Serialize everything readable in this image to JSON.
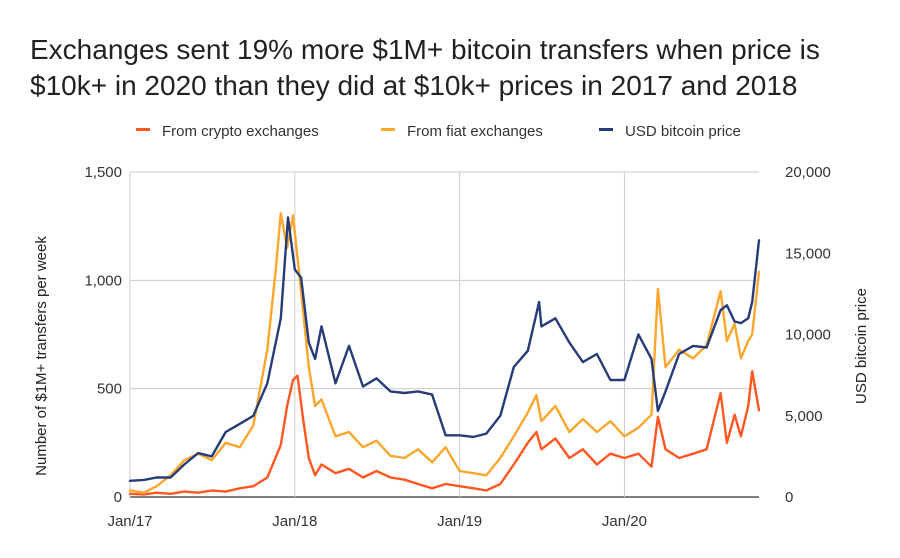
{
  "title_lines": [
    "Exchanges sent 19% more $1M+ bitcoin transfers when price is",
    "$10k+ in 2020 than they did at $10k+ prices in 2017 and 2018"
  ],
  "colors": {
    "crypto": "#FF5722",
    "fiat": "#FBA62D",
    "price": "#253C78",
    "grid": "#CCCCCC",
    "axis": "#333333"
  },
  "chart_data": {
    "type": "line",
    "title": "Exchanges sent 19% more $1M+ bitcoin transfers when price is $10k+ in 2020 than they did at $10k+ prices in 2017 and 2018",
    "ylabel": "Number of $1M+ transfers per week",
    "ylabel_right": "USD bitcoin price",
    "ylim": [
      0,
      1500
    ],
    "ylim_right": [
      0,
      20000
    ],
    "y_ticks": [
      "0",
      "500",
      "1,000",
      "1,500"
    ],
    "y_ticks_right": [
      "0",
      "5,000",
      "10,000",
      "15,000",
      "20,000"
    ],
    "x_ticks": [
      "Jan/17",
      "Jan/18",
      "Jan/19",
      "Jan/20"
    ],
    "x_range": [
      "2017-01-01",
      "2020-10-25"
    ],
    "grid": true,
    "legend_position": "top",
    "series": [
      {
        "name": "From crypto exchanges",
        "axis": "left",
        "color_key": "crypto",
        "points": [
          [
            "2017-01-01",
            15
          ],
          [
            "2017-02-01",
            12
          ],
          [
            "2017-03-01",
            20
          ],
          [
            "2017-04-01",
            15
          ],
          [
            "2017-05-01",
            25
          ],
          [
            "2017-06-01",
            20
          ],
          [
            "2017-07-01",
            30
          ],
          [
            "2017-08-01",
            25
          ],
          [
            "2017-09-01",
            40
          ],
          [
            "2017-10-01",
            50
          ],
          [
            "2017-11-01",
            90
          ],
          [
            "2017-12-01",
            240
          ],
          [
            "2017-12-15",
            420
          ],
          [
            "2017-12-28",
            540
          ],
          [
            "2018-01-07",
            560
          ],
          [
            "2018-01-20",
            350
          ],
          [
            "2018-02-01",
            180
          ],
          [
            "2018-02-15",
            100
          ],
          [
            "2018-03-01",
            150
          ],
          [
            "2018-04-01",
            110
          ],
          [
            "2018-05-01",
            130
          ],
          [
            "2018-06-01",
            90
          ],
          [
            "2018-07-01",
            120
          ],
          [
            "2018-08-01",
            90
          ],
          [
            "2018-09-01",
            80
          ],
          [
            "2018-10-01",
            60
          ],
          [
            "2018-11-01",
            40
          ],
          [
            "2018-12-01",
            60
          ],
          [
            "2019-01-01",
            50
          ],
          [
            "2019-02-01",
            40
          ],
          [
            "2019-03-01",
            30
          ],
          [
            "2019-04-01",
            60
          ],
          [
            "2019-05-01",
            150
          ],
          [
            "2019-06-01",
            250
          ],
          [
            "2019-06-20",
            300
          ],
          [
            "2019-07-01",
            220
          ],
          [
            "2019-08-01",
            270
          ],
          [
            "2019-09-01",
            180
          ],
          [
            "2019-10-01",
            220
          ],
          [
            "2019-11-01",
            150
          ],
          [
            "2019-12-01",
            200
          ],
          [
            "2020-01-01",
            180
          ],
          [
            "2020-02-01",
            200
          ],
          [
            "2020-03-01",
            140
          ],
          [
            "2020-03-15",
            370
          ],
          [
            "2020-04-01",
            220
          ],
          [
            "2020-05-01",
            180
          ],
          [
            "2020-06-01",
            200
          ],
          [
            "2020-07-01",
            220
          ],
          [
            "2020-08-01",
            480
          ],
          [
            "2020-08-15",
            250
          ],
          [
            "2020-09-01",
            380
          ],
          [
            "2020-09-15",
            280
          ],
          [
            "2020-10-01",
            420
          ],
          [
            "2020-10-10",
            580
          ],
          [
            "2020-10-25",
            400
          ]
        ]
      },
      {
        "name": "From fiat exchanges",
        "axis": "left",
        "color_key": "fiat",
        "points": [
          [
            "2017-01-01",
            30
          ],
          [
            "2017-02-01",
            20
          ],
          [
            "2017-03-01",
            50
          ],
          [
            "2017-04-01",
            100
          ],
          [
            "2017-05-01",
            170
          ],
          [
            "2017-06-01",
            200
          ],
          [
            "2017-07-01",
            170
          ],
          [
            "2017-08-01",
            250
          ],
          [
            "2017-09-01",
            230
          ],
          [
            "2017-10-01",
            330
          ],
          [
            "2017-11-01",
            680
          ],
          [
            "2017-11-20",
            1050
          ],
          [
            "2017-12-01",
            1310
          ],
          [
            "2017-12-15",
            1150
          ],
          [
            "2017-12-28",
            1300
          ],
          [
            "2018-01-15",
            950
          ],
          [
            "2018-02-01",
            600
          ],
          [
            "2018-02-15",
            420
          ],
          [
            "2018-03-01",
            450
          ],
          [
            "2018-04-01",
            280
          ],
          [
            "2018-05-01",
            300
          ],
          [
            "2018-06-01",
            230
          ],
          [
            "2018-07-01",
            260
          ],
          [
            "2018-08-01",
            190
          ],
          [
            "2018-09-01",
            180
          ],
          [
            "2018-10-01",
            220
          ],
          [
            "2018-11-01",
            160
          ],
          [
            "2018-12-01",
            230
          ],
          [
            "2019-01-01",
            120
          ],
          [
            "2019-02-01",
            110
          ],
          [
            "2019-03-01",
            100
          ],
          [
            "2019-04-01",
            180
          ],
          [
            "2019-05-01",
            280
          ],
          [
            "2019-06-01",
            390
          ],
          [
            "2019-06-20",
            470
          ],
          [
            "2019-07-01",
            350
          ],
          [
            "2019-08-01",
            420
          ],
          [
            "2019-09-01",
            300
          ],
          [
            "2019-10-01",
            360
          ],
          [
            "2019-11-01",
            300
          ],
          [
            "2019-12-01",
            350
          ],
          [
            "2020-01-01",
            280
          ],
          [
            "2020-02-01",
            320
          ],
          [
            "2020-03-01",
            380
          ],
          [
            "2020-03-15",
            960
          ],
          [
            "2020-04-01",
            600
          ],
          [
            "2020-05-01",
            680
          ],
          [
            "2020-06-01",
            640
          ],
          [
            "2020-07-01",
            700
          ],
          [
            "2020-08-01",
            950
          ],
          [
            "2020-08-15",
            720
          ],
          [
            "2020-09-01",
            800
          ],
          [
            "2020-09-15",
            640
          ],
          [
            "2020-10-01",
            720
          ],
          [
            "2020-10-10",
            750
          ],
          [
            "2020-10-25",
            1040
          ]
        ]
      },
      {
        "name": "USD bitcoin price",
        "axis": "right",
        "color_key": "price",
        "points": [
          [
            "2017-01-01",
            1000
          ],
          [
            "2017-02-01",
            1050
          ],
          [
            "2017-03-01",
            1200
          ],
          [
            "2017-04-01",
            1200
          ],
          [
            "2017-05-01",
            2000
          ],
          [
            "2017-06-01",
            2700
          ],
          [
            "2017-07-01",
            2500
          ],
          [
            "2017-08-01",
            4000
          ],
          [
            "2017-09-01",
            4500
          ],
          [
            "2017-10-01",
            5000
          ],
          [
            "2017-11-01",
            7000
          ],
          [
            "2017-12-01",
            11000
          ],
          [
            "2017-12-17",
            17200
          ],
          [
            "2018-01-01",
            14000
          ],
          [
            "2018-01-15",
            13500
          ],
          [
            "2018-02-01",
            9500
          ],
          [
            "2018-02-15",
            8500
          ],
          [
            "2018-03-01",
            10500
          ],
          [
            "2018-04-01",
            7000
          ],
          [
            "2018-05-01",
            9300
          ],
          [
            "2018-06-01",
            6800
          ],
          [
            "2018-07-01",
            7300
          ],
          [
            "2018-08-01",
            6500
          ],
          [
            "2018-09-01",
            6400
          ],
          [
            "2018-10-01",
            6500
          ],
          [
            "2018-11-01",
            6300
          ],
          [
            "2018-12-01",
            3800
          ],
          [
            "2019-01-01",
            3800
          ],
          [
            "2019-02-01",
            3700
          ],
          [
            "2019-03-01",
            3900
          ],
          [
            "2019-04-01",
            5000
          ],
          [
            "2019-05-01",
            8000
          ],
          [
            "2019-06-01",
            9000
          ],
          [
            "2019-06-26",
            12000
          ],
          [
            "2019-07-01",
            10500
          ],
          [
            "2019-08-01",
            11000
          ],
          [
            "2019-09-01",
            9500
          ],
          [
            "2019-10-01",
            8300
          ],
          [
            "2019-11-01",
            8800
          ],
          [
            "2019-12-01",
            7200
          ],
          [
            "2020-01-01",
            7200
          ],
          [
            "2020-02-01",
            10000
          ],
          [
            "2020-03-01",
            8500
          ],
          [
            "2020-03-15",
            5300
          ],
          [
            "2020-04-01",
            6500
          ],
          [
            "2020-05-01",
            8800
          ],
          [
            "2020-06-01",
            9300
          ],
          [
            "2020-07-01",
            9200
          ],
          [
            "2020-08-01",
            11500
          ],
          [
            "2020-08-15",
            11800
          ],
          [
            "2020-09-01",
            10800
          ],
          [
            "2020-09-15",
            10700
          ],
          [
            "2020-10-01",
            11000
          ],
          [
            "2020-10-10",
            12000
          ],
          [
            "2020-10-25",
            15800
          ]
        ]
      }
    ]
  }
}
